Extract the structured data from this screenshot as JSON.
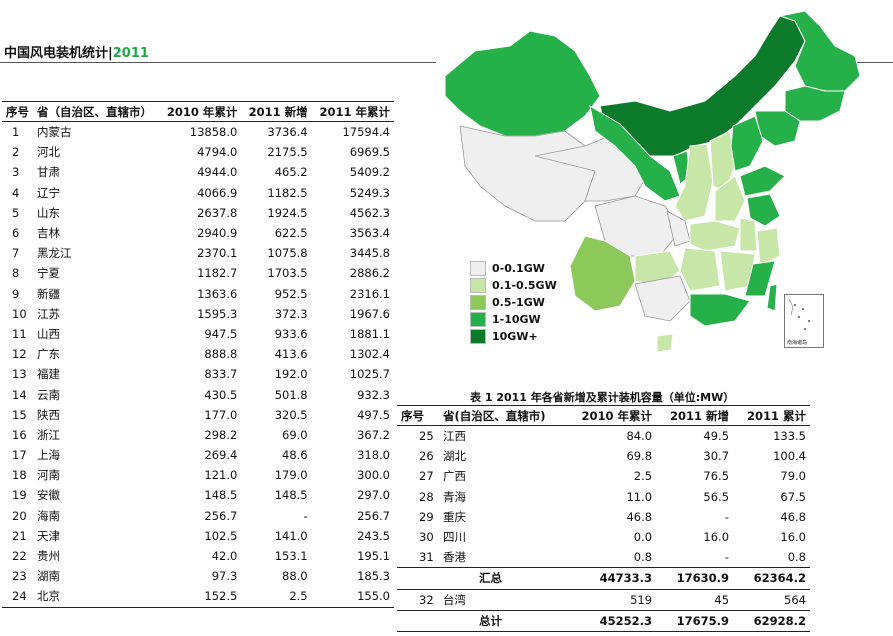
{
  "title": {
    "main": "中国风电装机统计",
    "sep": "|",
    "year": "2011"
  },
  "headers": {
    "left": [
      "序号",
      "省（自治区、直辖市）",
      "2010 年累计",
      "2011 新增",
      "2011 年累计"
    ],
    "right": [
      "序号",
      "省(自治区、直辖市)",
      "2010 年累计",
      "2011 新增",
      "2011 累计"
    ]
  },
  "left_rows": [
    [
      "1",
      "内蒙古",
      "13858.0",
      "3736.4",
      "17594.4"
    ],
    [
      "2",
      "河北",
      "4794.0",
      "2175.5",
      "6969.5"
    ],
    [
      "3",
      "甘肃",
      "4944.0",
      "465.2",
      "5409.2"
    ],
    [
      "4",
      "辽宁",
      "4066.9",
      "1182.5",
      "5249.3"
    ],
    [
      "5",
      "山东",
      "2637.8",
      "1924.5",
      "4562.3"
    ],
    [
      "6",
      "吉林",
      "2940.9",
      "622.5",
      "3563.4"
    ],
    [
      "7",
      "黑龙江",
      "2370.1",
      "1075.8",
      "3445.8"
    ],
    [
      "8",
      "宁夏",
      "1182.7",
      "1703.5",
      "2886.2"
    ],
    [
      "9",
      "新疆",
      "1363.6",
      "952.5",
      "2316.1"
    ],
    [
      "10",
      "江苏",
      "1595.3",
      "372.3",
      "1967.6"
    ],
    [
      "11",
      "山西",
      "947.5",
      "933.6",
      "1881.1"
    ],
    [
      "12",
      "广东",
      "888.8",
      "413.6",
      "1302.4"
    ],
    [
      "13",
      "福建",
      "833.7",
      "192.0",
      "1025.7"
    ],
    [
      "14",
      "云南",
      "430.5",
      "501.8",
      "932.3"
    ],
    [
      "15",
      "陕西",
      "177.0",
      "320.5",
      "497.5"
    ],
    [
      "16",
      "浙江",
      "298.2",
      "69.0",
      "367.2"
    ],
    [
      "17",
      "上海",
      "269.4",
      "48.6",
      "318.0"
    ],
    [
      "18",
      "河南",
      "121.0",
      "179.0",
      "300.0"
    ],
    [
      "19",
      "安徽",
      "148.5",
      "148.5",
      "297.0"
    ],
    [
      "20",
      "海南",
      "256.7",
      "-",
      "256.7"
    ],
    [
      "21",
      "天津",
      "102.5",
      "141.0",
      "243.5"
    ],
    [
      "22",
      "贵州",
      "42.0",
      "153.1",
      "195.1"
    ],
    [
      "23",
      "湖南",
      "97.3",
      "88.0",
      "185.3"
    ],
    [
      "24",
      "北京",
      "152.5",
      "2.5",
      "155.0"
    ]
  ],
  "right_rows": [
    [
      "25",
      "江西",
      "84.0",
      "49.5",
      "133.5"
    ],
    [
      "26",
      "湖北",
      "69.8",
      "30.7",
      "100.4"
    ],
    [
      "27",
      "广西",
      "2.5",
      "76.5",
      "79.0"
    ],
    [
      "28",
      "青海",
      "11.0",
      "56.5",
      "67.5"
    ],
    [
      "29",
      "重庆",
      "46.8",
      "-",
      "46.8"
    ],
    [
      "30",
      "四川",
      "0.0",
      "16.0",
      "16.0"
    ],
    [
      "31",
      "香港",
      "0.8",
      "-",
      "0.8"
    ]
  ],
  "subtotal": {
    "label": "汇总",
    "v2010": "44733.3",
    "v2011new": "17630.9",
    "v2011": "62364.2"
  },
  "taiwan": [
    "32",
    "台湾",
    "519",
    "45",
    "564"
  ],
  "total": {
    "label": "总计",
    "v2010": "45252.3",
    "v2011new": "17675.9",
    "v2011": "62928.2"
  },
  "caption": "表 1 2011 年各省新增及累计装机容量（单位:MW）",
  "legend": [
    {
      "label": "0-0.1GW",
      "color": "#efefef"
    },
    {
      "label": "0.1-0.5GW",
      "color": "#c8e6a8"
    },
    {
      "label": "0.5-1GW",
      "color": "#8cc95a"
    },
    {
      "label": "1-10GW",
      "color": "#26b04a"
    },
    {
      "label": "10GW+",
      "color": "#0b7a2a"
    }
  ],
  "inset_label": "南海诸岛"
}
